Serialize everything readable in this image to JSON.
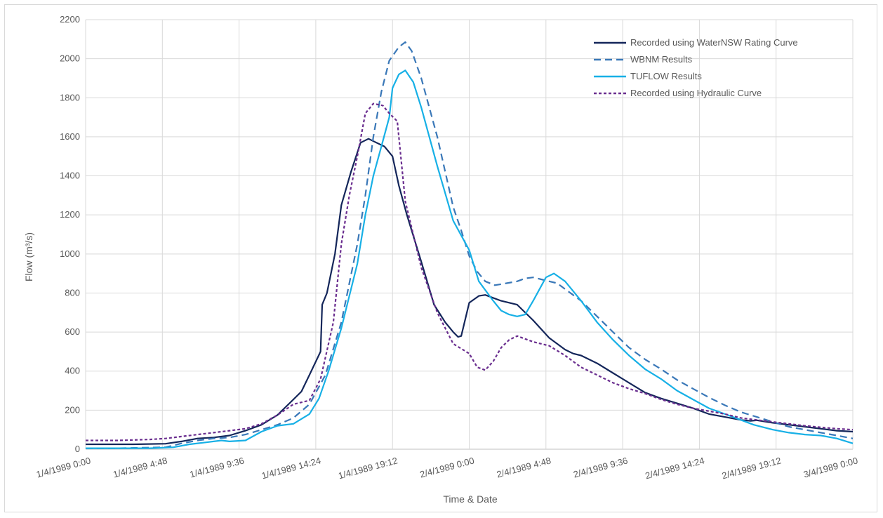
{
  "chart_data": {
    "type": "line",
    "title": "",
    "xlabel": "Time & Date",
    "ylabel": "Flow (m³/s)",
    "ylim": [
      0,
      2200
    ],
    "y_ticks": [
      0,
      200,
      400,
      600,
      800,
      1000,
      1200,
      1400,
      1600,
      1800,
      2000,
      2200
    ],
    "x_unit": "hours since 1/4/1989 0:00",
    "xlim": [
      0,
      48
    ],
    "x_tick_values": [
      0,
      4.8,
      9.6,
      14.4,
      19.2,
      24,
      28.8,
      33.6,
      38.4,
      43.2,
      48
    ],
    "x_tick_labels": [
      "1/4/1989 0:00",
      "1/4/1989 4:48",
      "1/4/1989 9:36",
      "1/4/1989 14:24",
      "1/4/1989 19:12",
      "2/4/1989 0:00",
      "2/4/1989 4:48",
      "2/4/1989 9:36",
      "2/4/1989 14:24",
      "2/4/1989 19:12",
      "3/4/1989 0:00"
    ],
    "grid": true,
    "legend_position": "top-right",
    "series": [
      {
        "name": "Recorded using WaterNSW Rating Curve",
        "color": "#14265a",
        "dash": "solid",
        "points": [
          [
            0,
            25
          ],
          [
            3,
            25
          ],
          [
            5,
            28
          ],
          [
            6,
            40
          ],
          [
            7,
            55
          ],
          [
            8,
            60
          ],
          [
            9,
            70
          ],
          [
            10,
            95
          ],
          [
            11,
            125
          ],
          [
            12,
            175
          ],
          [
            13,
            255
          ],
          [
            13.5,
            295
          ],
          [
            14,
            380
          ],
          [
            14.7,
            500
          ],
          [
            14.8,
            740
          ],
          [
            15.1,
            800
          ],
          [
            15.6,
            1000
          ],
          [
            16,
            1250
          ],
          [
            16.6,
            1420
          ],
          [
            17.2,
            1570
          ],
          [
            17.7,
            1590
          ],
          [
            18.2,
            1570
          ],
          [
            18.7,
            1550
          ],
          [
            19.2,
            1500
          ],
          [
            19.6,
            1350
          ],
          [
            20.1,
            1200
          ],
          [
            21,
            960
          ],
          [
            21.8,
            740
          ],
          [
            22.5,
            650
          ],
          [
            23,
            600
          ],
          [
            23.3,
            575
          ],
          [
            23.5,
            580
          ],
          [
            24,
            750
          ],
          [
            24.6,
            785
          ],
          [
            25,
            790
          ],
          [
            26,
            760
          ],
          [
            27,
            740
          ],
          [
            28,
            660
          ],
          [
            29,
            570
          ],
          [
            30,
            510
          ],
          [
            30.5,
            490
          ],
          [
            31,
            480
          ],
          [
            32,
            440
          ],
          [
            33,
            390
          ],
          [
            34,
            340
          ],
          [
            35,
            290
          ],
          [
            36,
            260
          ],
          [
            37,
            235
          ],
          [
            38,
            210
          ],
          [
            39,
            180
          ],
          [
            40,
            165
          ],
          [
            41,
            150
          ],
          [
            41.6,
            145
          ],
          [
            42,
            148
          ],
          [
            43,
            135
          ],
          [
            44,
            125
          ],
          [
            45,
            115
          ],
          [
            46,
            105
          ],
          [
            47,
            95
          ],
          [
            48,
            90
          ]
        ]
      },
      {
        "name": "WBNM Results",
        "color": "#3a78b8",
        "dash": "dashed",
        "points": [
          [
            0,
            5
          ],
          [
            2,
            5
          ],
          [
            5,
            10
          ],
          [
            6,
            30
          ],
          [
            7,
            45
          ],
          [
            8,
            55
          ],
          [
            9,
            60
          ],
          [
            10,
            75
          ],
          [
            11,
            100
          ],
          [
            12,
            125
          ],
          [
            13,
            160
          ],
          [
            14,
            230
          ],
          [
            15,
            380
          ],
          [
            16,
            650
          ],
          [
            17,
            1050
          ],
          [
            17.5,
            1300
          ],
          [
            18,
            1600
          ],
          [
            18.5,
            1830
          ],
          [
            19,
            1990
          ],
          [
            19.6,
            2060
          ],
          [
            20,
            2085
          ],
          [
            20.4,
            2040
          ],
          [
            21,
            1900
          ],
          [
            22,
            1600
          ],
          [
            23,
            1240
          ],
          [
            23.5,
            1120
          ],
          [
            24,
            990
          ],
          [
            24.5,
            910
          ],
          [
            25,
            860
          ],
          [
            25.6,
            840
          ],
          [
            26,
            845
          ],
          [
            27,
            860
          ],
          [
            27.5,
            875
          ],
          [
            28,
            880
          ],
          [
            29,
            860
          ],
          [
            29.5,
            850
          ],
          [
            30,
            820
          ],
          [
            31,
            760
          ],
          [
            32,
            680
          ],
          [
            33,
            600
          ],
          [
            34,
            520
          ],
          [
            35,
            460
          ],
          [
            36,
            410
          ],
          [
            37,
            355
          ],
          [
            38,
            310
          ],
          [
            39,
            265
          ],
          [
            40,
            225
          ],
          [
            41,
            190
          ],
          [
            42,
            165
          ],
          [
            43,
            140
          ],
          [
            44,
            115
          ],
          [
            45,
            100
          ],
          [
            46,
            85
          ],
          [
            47,
            70
          ],
          [
            48,
            55
          ]
        ]
      },
      {
        "name": "TUFLOW Results",
        "color": "#17b0e6",
        "dash": "solid",
        "points": [
          [
            0,
            5
          ],
          [
            4,
            5
          ],
          [
            5.5,
            10
          ],
          [
            6.5,
            25
          ],
          [
            7.5,
            35
          ],
          [
            8.5,
            45
          ],
          [
            9,
            40
          ],
          [
            10,
            45
          ],
          [
            11,
            90
          ],
          [
            12,
            120
          ],
          [
            13,
            130
          ],
          [
            14,
            180
          ],
          [
            14.6,
            260
          ],
          [
            15.2,
            400
          ],
          [
            16,
            620
          ],
          [
            17,
            950
          ],
          [
            17.5,
            1200
          ],
          [
            18,
            1400
          ],
          [
            18.5,
            1550
          ],
          [
            19,
            1700
          ],
          [
            19.2,
            1850
          ],
          [
            19.6,
            1920
          ],
          [
            20,
            1940
          ],
          [
            20.5,
            1880
          ],
          [
            21,
            1750
          ],
          [
            22,
            1450
          ],
          [
            23,
            1170
          ],
          [
            24,
            1020
          ],
          [
            24.6,
            860
          ],
          [
            25.5,
            760
          ],
          [
            26,
            710
          ],
          [
            26.5,
            690
          ],
          [
            27,
            680
          ],
          [
            27.5,
            690
          ],
          [
            28,
            760
          ],
          [
            28.8,
            880
          ],
          [
            29.3,
            900
          ],
          [
            30,
            860
          ],
          [
            31,
            760
          ],
          [
            32,
            650
          ],
          [
            33,
            560
          ],
          [
            34,
            480
          ],
          [
            35,
            410
          ],
          [
            36,
            360
          ],
          [
            37,
            300
          ],
          [
            38,
            255
          ],
          [
            39,
            210
          ],
          [
            40,
            180
          ],
          [
            41,
            150
          ],
          [
            41.8,
            125
          ],
          [
            43,
            100
          ],
          [
            44,
            85
          ],
          [
            45,
            75
          ],
          [
            46,
            70
          ],
          [
            47,
            55
          ],
          [
            48,
            30
          ]
        ]
      },
      {
        "name": "Recorded using Hydraulic Curve",
        "color": "#6a2e8f",
        "dash": "dotted",
        "points": [
          [
            0,
            45
          ],
          [
            2,
            45
          ],
          [
            4,
            50
          ],
          [
            5,
            55
          ],
          [
            6,
            65
          ],
          [
            7,
            75
          ],
          [
            8,
            85
          ],
          [
            9,
            95
          ],
          [
            10,
            105
          ],
          [
            11,
            130
          ],
          [
            12,
            175
          ],
          [
            13,
            230
          ],
          [
            14,
            250
          ],
          [
            14.7,
            360
          ],
          [
            15.5,
            650
          ],
          [
            16,
            1050
          ],
          [
            16.5,
            1300
          ],
          [
            17,
            1500
          ],
          [
            17.5,
            1720
          ],
          [
            18,
            1770
          ],
          [
            18.6,
            1760
          ],
          [
            19,
            1720
          ],
          [
            19.5,
            1680
          ],
          [
            20,
            1270
          ],
          [
            21,
            930
          ],
          [
            22,
            700
          ],
          [
            23,
            540
          ],
          [
            24,
            490
          ],
          [
            24.5,
            420
          ],
          [
            25,
            405
          ],
          [
            25.5,
            450
          ],
          [
            26,
            520
          ],
          [
            26.5,
            560
          ],
          [
            27,
            580
          ],
          [
            28,
            550
          ],
          [
            29,
            530
          ],
          [
            30,
            480
          ],
          [
            31,
            420
          ],
          [
            32,
            380
          ],
          [
            33,
            340
          ],
          [
            34,
            310
          ],
          [
            35,
            285
          ],
          [
            36,
            255
          ],
          [
            37,
            230
          ],
          [
            38,
            210
          ],
          [
            39,
            195
          ],
          [
            40,
            180
          ],
          [
            41,
            160
          ],
          [
            42,
            150
          ],
          [
            43,
            140
          ],
          [
            44,
            130
          ],
          [
            45,
            120
          ],
          [
            46,
            112
          ],
          [
            47,
            105
          ],
          [
            48,
            100
          ]
        ]
      }
    ]
  }
}
